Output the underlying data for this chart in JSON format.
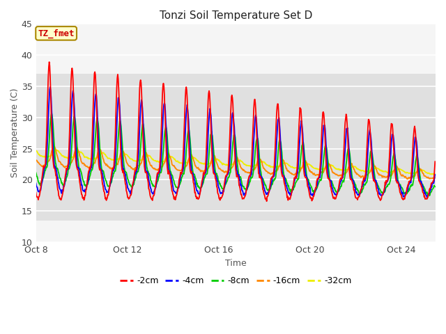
{
  "title": "Tonzi Soil Temperature Set D",
  "xlabel": "Time",
  "ylabel": "Soil Temperature (C)",
  "ylim": [
    10,
    45
  ],
  "xlim_days": [
    0,
    17.5
  ],
  "x_tick_labels": [
    "Oct 8",
    "Oct 12",
    "Oct 16",
    "Oct 20",
    "Oct 24"
  ],
  "x_tick_positions": [
    0,
    4,
    8,
    12,
    16
  ],
  "annotation_text": "TZ_fmet",
  "annotation_bg": "#ffffcc",
  "annotation_border": "#aa8800",
  "annotation_text_color": "#cc0000",
  "series_colors": [
    "#ff0000",
    "#0000ff",
    "#00cc00",
    "#ff8800",
    "#eeee00"
  ],
  "series_labels": [
    "-2cm",
    "-4cm",
    "-8cm",
    "-16cm",
    "-32cm"
  ],
  "bg_rect_color": "#e0e0e0",
  "bg_rect_ymin": 13.5,
  "bg_rect_ymax": 37.0,
  "axes_bg": "#f5f5f5",
  "grid_color": "#ffffff",
  "lw": 1.3
}
